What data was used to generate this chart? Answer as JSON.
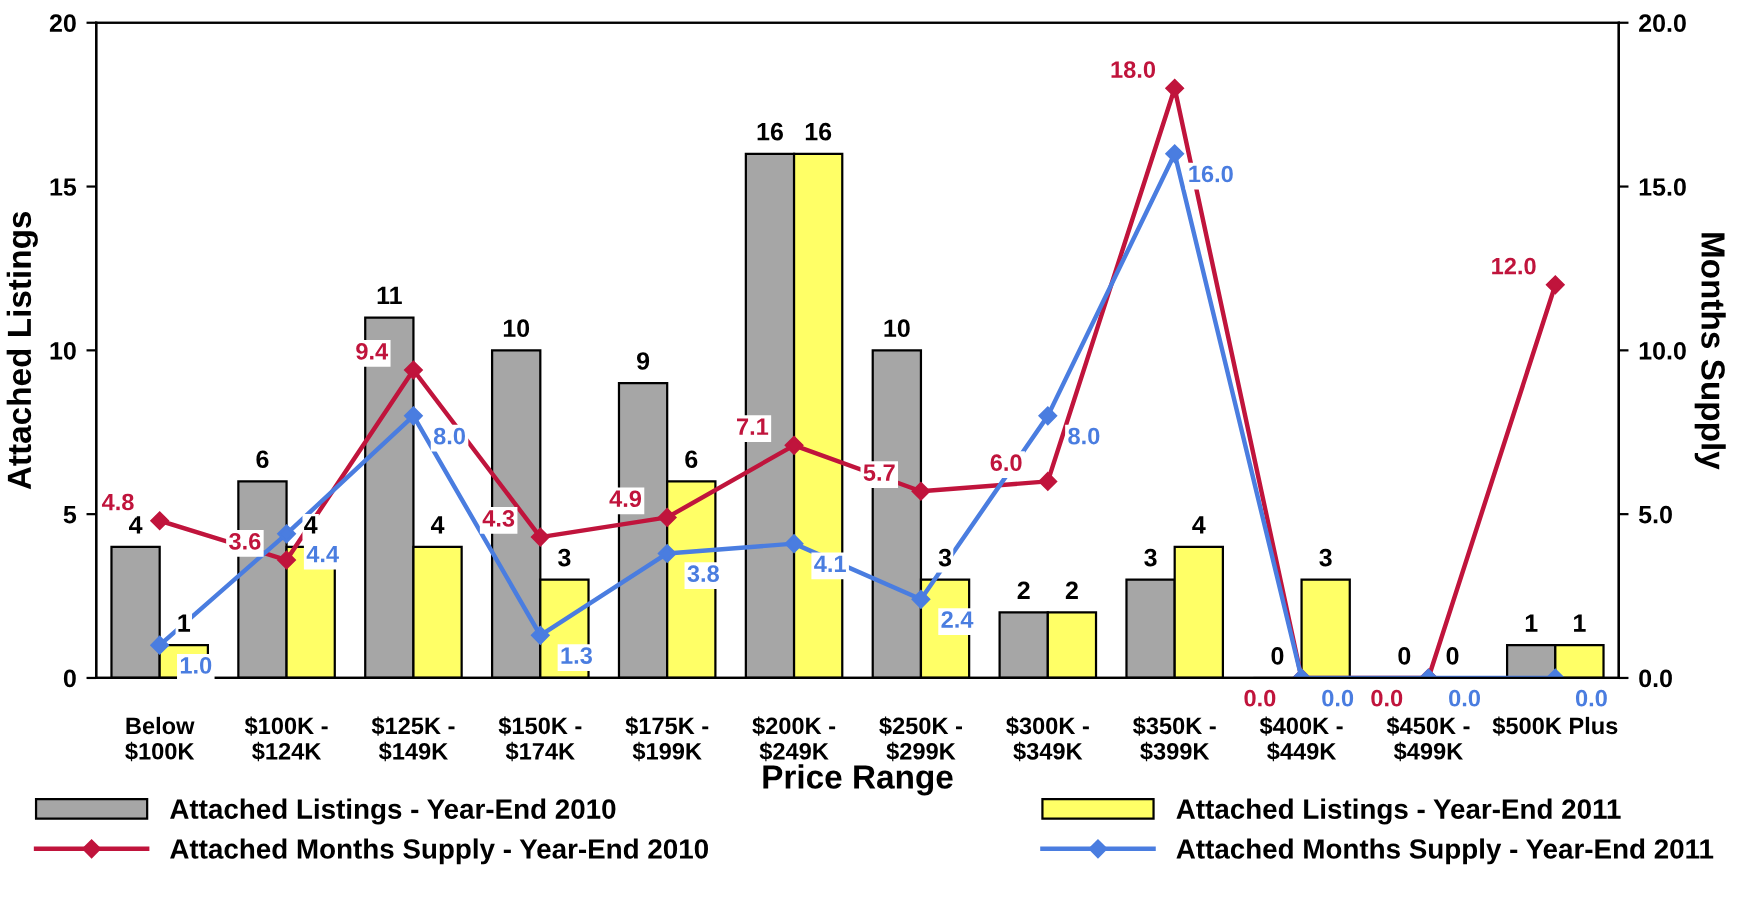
{
  "chart_data": {
    "type": "bar",
    "xlabel": "Price Range",
    "ylabel": "Attached Listings",
    "y2label": "Months Supply",
    "categories": [
      "Below\n$100K",
      "$100K -\n$124K",
      "$125K -\n$149K",
      "$150K -\n$174K",
      "$175K -\n$199K",
      "$200K -\n$249K",
      "$250K -\n$299K",
      "$300K -\n$349K",
      "$350K -\n$399K",
      "$400K -\n$449K",
      "$450K -\n$499K",
      "$500K Plus"
    ],
    "series": [
      {
        "name": "Attached Listings - Year-End 2010",
        "color": "#a6a6a6",
        "values": [
          4,
          6,
          11,
          10,
          9,
          16,
          10,
          2,
          3,
          0,
          0,
          1
        ]
      },
      {
        "name": "Attached Listings - Year-End 2011",
        "color": "#ffff66",
        "values": [
          1,
          4,
          4,
          3,
          6,
          16,
          3,
          2,
          4,
          3,
          0,
          1
        ]
      },
      {
        "name": "Attached Months Supply - Year-End 2010",
        "type": "line",
        "axis": "y2",
        "color": "#c0143c",
        "values": [
          4.8,
          3.6,
          9.4,
          4.3,
          4.9,
          7.1,
          5.7,
          6.0,
          18.0,
          0.0,
          0.0,
          12.0
        ],
        "value_labels": [
          "4.8",
          "3.6",
          "9.4",
          "4.3",
          "4.9",
          "7.1",
          "5.7",
          "6.0",
          "18.0",
          "0.0",
          "0.0",
          "12.0"
        ]
      },
      {
        "name": "Attached Months Supply - Year-End 2011",
        "type": "line",
        "axis": "y2",
        "color": "#4a7de0",
        "values": [
          1.0,
          4.4,
          8.0,
          1.3,
          3.8,
          4.1,
          2.4,
          8.0,
          16.0,
          0.0,
          0.0,
          0.0
        ],
        "value_labels": [
          "1.0",
          "4.4",
          "8.0",
          "1.3",
          "3.8",
          "4.1",
          "2.4",
          "8.0",
          "16.0",
          "0.0",
          "0.0",
          "0.0"
        ]
      }
    ],
    "ylim": [
      0,
      20
    ],
    "yticks": [
      0,
      5,
      10,
      15,
      20
    ],
    "y2lim": [
      0,
      20
    ],
    "y2ticks": [
      {
        "value": 0,
        "label": "0.0"
      },
      {
        "value": 5,
        "label": "5.0"
      },
      {
        "value": 10,
        "label": "10.0"
      },
      {
        "value": 15,
        "label": "15.0"
      },
      {
        "value": 20,
        "label": "20.0"
      }
    ],
    "marker": "diamond",
    "line_style": "solid",
    "grid": false,
    "legend": "bottom",
    "data_labels": true
  }
}
